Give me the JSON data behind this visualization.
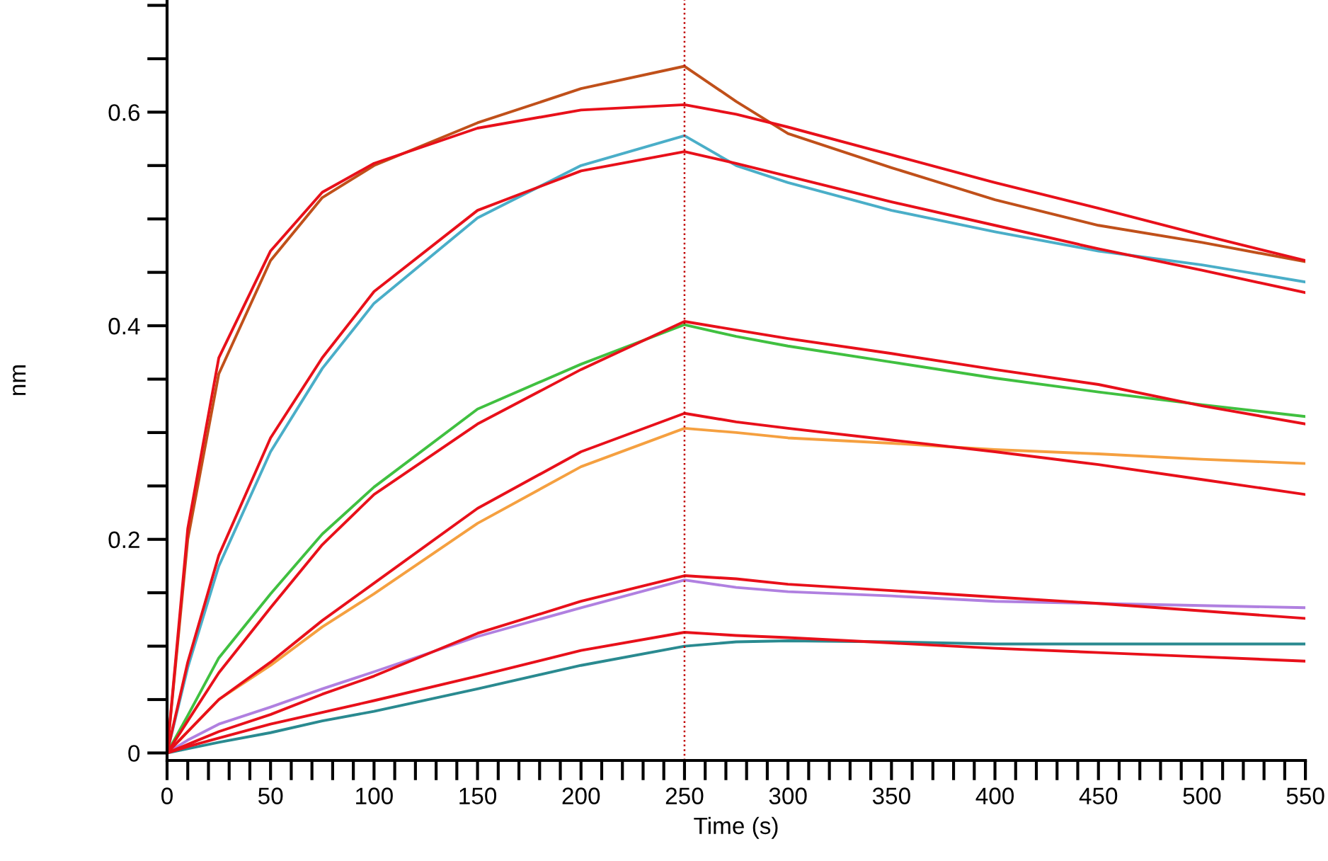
{
  "chart_data": {
    "type": "line",
    "xlabel": "Time (s)",
    "ylabel": "nm",
    "x": [
      0,
      10,
      25,
      50,
      75,
      100,
      150,
      200,
      250,
      275,
      300,
      350,
      400,
      450,
      500,
      550
    ],
    "series": [
      {
        "color": "#c0501a",
        "values": [
          0,
          0.2,
          0.355,
          0.461,
          0.52,
          0.55,
          0.59,
          0.622,
          0.643,
          0.61,
          0.58,
          0.548,
          0.518,
          0.494,
          0.478,
          0.46
        ]
      },
      {
        "color": "#4aaec8",
        "values": [
          0,
          0.08,
          0.175,
          0.282,
          0.36,
          0.421,
          0.501,
          0.55,
          0.578,
          0.55,
          0.534,
          0.508,
          0.488,
          0.47,
          0.457,
          0.441
        ]
      },
      {
        "color": "#40c040",
        "values": [
          0,
          0.035,
          0.089,
          0.149,
          0.205,
          0.249,
          0.322,
          0.364,
          0.401,
          0.39,
          0.381,
          0.366,
          0.351,
          0.338,
          0.326,
          0.315
        ]
      },
      {
        "color": "#f5a040",
        "values": [
          0,
          0.02,
          0.05,
          0.082,
          0.118,
          0.149,
          0.215,
          0.268,
          0.304,
          0.3,
          0.295,
          0.29,
          0.284,
          0.28,
          0.275,
          0.271
        ]
      },
      {
        "color": "#b080e0",
        "values": [
          0,
          0.012,
          0.027,
          0.043,
          0.06,
          0.076,
          0.109,
          0.136,
          0.162,
          0.155,
          0.151,
          0.147,
          0.142,
          0.14,
          0.138,
          0.136
        ]
      },
      {
        "color": "#2a8a90",
        "values": [
          0,
          0.004,
          0.01,
          0.019,
          0.03,
          0.039,
          0.06,
          0.082,
          0.1,
          0.104,
          0.105,
          0.104,
          0.102,
          0.102,
          0.102,
          0.102
        ]
      },
      {
        "color": "#e8101a",
        "values": [
          0,
          0.21,
          0.37,
          0.47,
          0.525,
          0.552,
          0.585,
          0.602,
          0.607,
          0.598,
          0.586,
          0.56,
          0.534,
          0.51,
          0.485,
          0.461
        ]
      },
      {
        "color": "#e8101a",
        "values": [
          0,
          0.085,
          0.185,
          0.295,
          0.37,
          0.432,
          0.508,
          0.545,
          0.563,
          0.552,
          0.54,
          0.516,
          0.494,
          0.472,
          0.452,
          0.431
        ]
      },
      {
        "color": "#e8101a",
        "values": [
          0,
          0.03,
          0.075,
          0.136,
          0.195,
          0.242,
          0.308,
          0.359,
          0.404,
          0.396,
          0.388,
          0.374,
          0.359,
          0.345,
          0.325,
          0.308
        ]
      },
      {
        "color": "#e8101a",
        "values": [
          0,
          0.02,
          0.05,
          0.085,
          0.124,
          0.159,
          0.229,
          0.282,
          0.318,
          0.31,
          0.304,
          0.293,
          0.282,
          0.27,
          0.256,
          0.242
        ]
      },
      {
        "color": "#e8101a",
        "values": [
          0,
          0.008,
          0.02,
          0.036,
          0.055,
          0.072,
          0.112,
          0.142,
          0.166,
          0.163,
          0.158,
          0.152,
          0.146,
          0.14,
          0.133,
          0.126
        ]
      },
      {
        "color": "#e8101a",
        "values": [
          0,
          0.006,
          0.014,
          0.027,
          0.038,
          0.049,
          0.072,
          0.096,
          0.113,
          0.11,
          0.108,
          0.103,
          0.098,
          0.094,
          0.09,
          0.086
        ]
      }
    ],
    "xlim": [
      0,
      550
    ],
    "ylim": [
      -0.007,
      0.705
    ],
    "xticks": [
      0,
      {
        "value": 10,
        "label": null
      },
      {
        "value": 20,
        "label": null
      },
      {
        "value": 30,
        "label": null
      },
      {
        "value": 40,
        "label": null
      },
      50,
      {
        "value": 60,
        "label": null
      },
      {
        "value": 70,
        "label": null
      },
      {
        "value": 80,
        "label": null
      },
      {
        "value": 90,
        "label": null
      },
      100,
      {
        "value": 110,
        "label": null
      },
      {
        "value": 120,
        "label": null
      },
      {
        "value": 130,
        "label": null
      },
      {
        "value": 140,
        "label": null
      },
      150,
      {
        "value": 160,
        "label": null
      },
      {
        "value": 170,
        "label": null
      },
      {
        "value": 180,
        "label": null
      },
      {
        "value": 190,
        "label": null
      },
      200,
      {
        "value": 210,
        "label": null
      },
      {
        "value": 220,
        "label": null
      },
      {
        "value": 230,
        "label": null
      },
      {
        "value": 240,
        "label": null
      },
      250,
      {
        "value": 260,
        "label": null
      },
      {
        "value": 270,
        "label": null
      },
      {
        "value": 280,
        "label": null
      },
      {
        "value": 290,
        "label": null
      },
      300,
      {
        "value": 310,
        "label": null
      },
      {
        "value": 320,
        "label": null
      },
      {
        "value": 330,
        "label": null
      },
      {
        "value": 340,
        "label": null
      },
      350,
      {
        "value": 360,
        "label": null
      },
      {
        "value": 370,
        "label": null
      },
      {
        "value": 380,
        "label": null
      },
      {
        "value": 390,
        "label": null
      },
      400,
      {
        "value": 410,
        "label": null
      },
      {
        "value": 420,
        "label": null
      },
      {
        "value": 430,
        "label": null
      },
      {
        "value": 440,
        "label": null
      },
      450,
      {
        "value": 460,
        "label": null
      },
      {
        "value": 470,
        "label": null
      },
      {
        "value": 480,
        "label": null
      },
      {
        "value": 490,
        "label": null
      },
      500,
      {
        "value": 510,
        "label": null
      },
      {
        "value": 520,
        "label": null
      },
      {
        "value": 530,
        "label": null
      },
      {
        "value": 540,
        "label": null
      },
      550
    ],
    "yticks": [
      0,
      {
        "value": 0.05,
        "label": null
      },
      {
        "value": 0.1,
        "label": null
      },
      {
        "value": 0.15,
        "label": null
      },
      0.2,
      {
        "value": 0.25,
        "label": null
      },
      {
        "value": 0.3,
        "label": null
      },
      {
        "value": 0.35,
        "label": null
      },
      0.4,
      {
        "value": 0.45,
        "label": null
      },
      {
        "value": 0.5,
        "label": null
      },
      {
        "value": 0.55,
        "label": null
      },
      0.6,
      {
        "value": 0.65,
        "label": null
      },
      {
        "value": 0.7,
        "label": null
      }
    ],
    "ref_lines": [
      {
        "axis": "x",
        "value": 250,
        "color": "#c00000",
        "line_style": "dotted"
      }
    ],
    "grid": false,
    "legend": false,
    "marker": "none",
    "line_style": "solid"
  }
}
